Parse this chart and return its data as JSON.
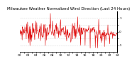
{
  "title": "Milwaukee Weather Normalized Wind Direction (Last 24 Hours)",
  "line_color": "#dd0000",
  "background_color": "#ffffff",
  "grid_color": "#bbbbbb",
  "ylim": [
    -1.5,
    1.5
  ],
  "yticks": [
    -1.0,
    -0.5,
    0.0,
    0.5,
    1.0
  ],
  "ytick_labels": [
    "-1",
    " ",
    "0",
    " ",
    "1"
  ],
  "num_points": 288,
  "title_fontsize": 4.0,
  "tick_fontsize": 3.2,
  "linewidth": 0.4
}
